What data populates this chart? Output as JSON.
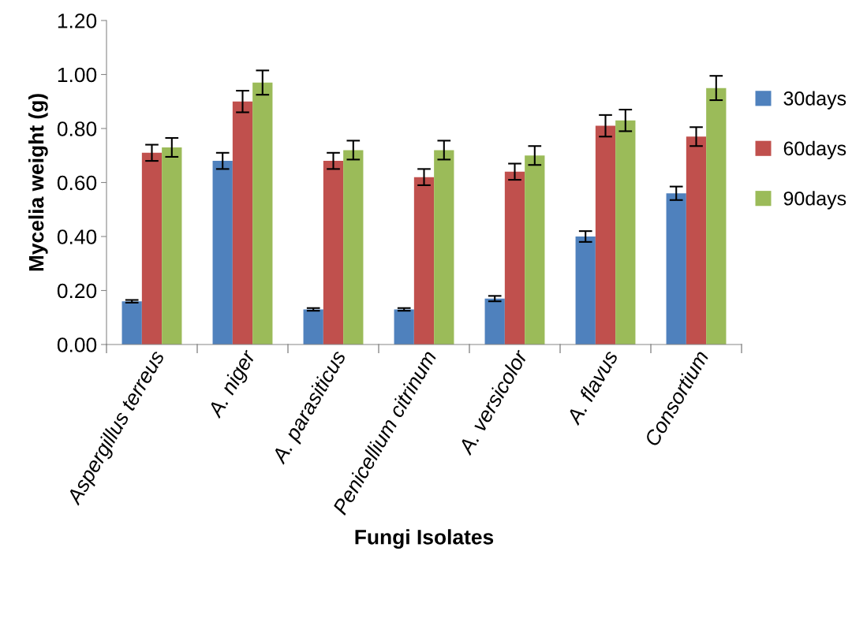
{
  "chart_data": {
    "type": "bar",
    "xlabel": "Fungi Isolates",
    "ylabel": "Mycelia weight (g)",
    "categories": [
      "Aspergillus terreus",
      "A. niger",
      "A. parasiticus",
      "Penicellium citrinum",
      "A. versicolor",
      "A. flavus",
      "Consortium"
    ],
    "series": [
      {
        "name": "30days",
        "color": "#4f81bd",
        "values": [
          0.16,
          0.68,
          0.13,
          0.13,
          0.17,
          0.4,
          0.56
        ],
        "errors": [
          0.005,
          0.03,
          0.005,
          0.005,
          0.01,
          0.02,
          0.025
        ]
      },
      {
        "name": "60days",
        "color": "#c0504d",
        "values": [
          0.71,
          0.9,
          0.68,
          0.62,
          0.64,
          0.81,
          0.77
        ],
        "errors": [
          0.03,
          0.04,
          0.03,
          0.03,
          0.03,
          0.04,
          0.035
        ]
      },
      {
        "name": "90days",
        "color": "#9bbb59",
        "values": [
          0.73,
          0.97,
          0.72,
          0.72,
          0.7,
          0.83,
          0.95
        ],
        "errors": [
          0.035,
          0.045,
          0.035,
          0.035,
          0.035,
          0.04,
          0.045
        ]
      }
    ],
    "ylim": [
      0,
      1.2
    ],
    "yticks": [
      {
        "value": 0,
        "label": "0.00"
      },
      {
        "value": 0.2,
        "label": "0.20"
      },
      {
        "value": 0.4,
        "label": "0.40"
      },
      {
        "value": 0.6,
        "label": "0.60"
      },
      {
        "value": 0.8,
        "label": "0.80"
      },
      {
        "value": 1.0,
        "label": "1.00"
      },
      {
        "value": 1.2,
        "label": "1.20"
      }
    ],
    "grid": false,
    "legend": "right"
  }
}
